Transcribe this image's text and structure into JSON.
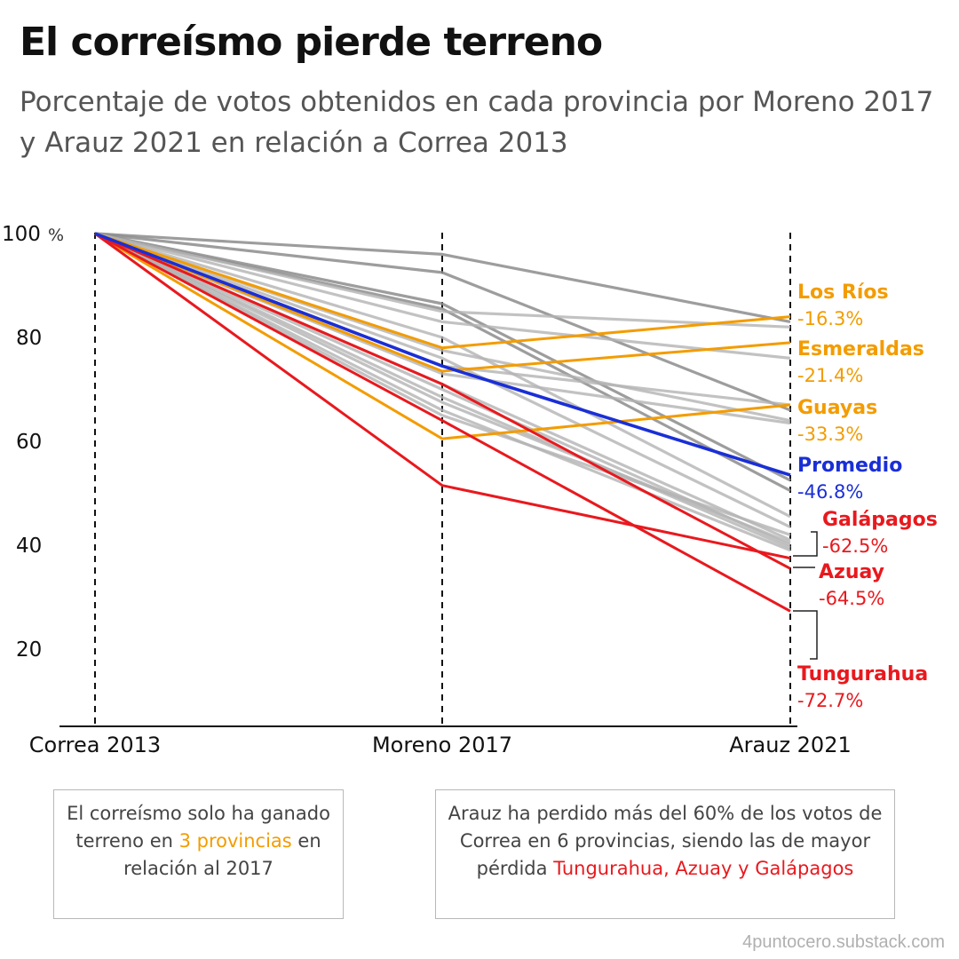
{
  "header": {
    "title": "El correísmo pierde terreno",
    "subtitle": "Porcentaje de votos obtenidos en cada provincia por Moreno 2017 y Arauz 2021 en relación a Correa 2013"
  },
  "colors": {
    "orange": "#f39c00",
    "red": "#e8191e",
    "blue": "#1a2fd6",
    "gray": "#b3b3b3",
    "dark_gray": "#8c8c8c"
  },
  "chart_data": {
    "type": "line",
    "categories": [
      "Correa 2013",
      "Moreno 2017",
      "Arauz 2021"
    ],
    "y_tick_labels": [
      "100",
      "80",
      "60",
      "40",
      "20"
    ],
    "y_unit": "%",
    "ylim": [
      5,
      100
    ],
    "grid": false,
    "highlighted_series": [
      {
        "name": "Los Ríos",
        "change_label": "-16.3%",
        "color": "#f39c00",
        "values": [
          100,
          78,
          84
        ]
      },
      {
        "name": "Esmeraldas",
        "change_label": "-21.4%",
        "color": "#f39c00",
        "values": [
          100,
          73.5,
          79
        ]
      },
      {
        "name": "Guayas",
        "change_label": "-33.3%",
        "color": "#f39c00",
        "values": [
          100,
          60.5,
          67
        ]
      },
      {
        "name": "Promedio",
        "change_label": "-46.8%",
        "color": "#1a2fd6",
        "values": [
          100,
          74.5,
          53.5
        ]
      },
      {
        "name": "Galápagos",
        "change_label": "-62.5%",
        "color": "#e8191e",
        "values": [
          100,
          51.5,
          37.5
        ]
      },
      {
        "name": "Azuay",
        "change_label": "-64.5%",
        "color": "#e8191e",
        "values": [
          100,
          71,
          35.5
        ]
      },
      {
        "name": "Tungurahua",
        "change_label": "-72.7%",
        "color": "#e8191e",
        "values": [
          100,
          64,
          27.3
        ]
      }
    ],
    "other_series": [
      {
        "values": [
          100,
          96,
          83
        ]
      },
      {
        "values": [
          100,
          92.5,
          66
        ]
      },
      {
        "values": [
          100,
          86.5,
          52.5
        ]
      },
      {
        "values": [
          100,
          85.5,
          50.5
        ]
      },
      {
        "values": [
          100,
          85,
          82
        ]
      },
      {
        "values": [
          100,
          83,
          76
        ]
      },
      {
        "values": [
          100,
          80,
          45.5
        ]
      },
      {
        "values": [
          100,
          77.5,
          64
        ]
      },
      {
        "values": [
          100,
          76,
          43.5
        ]
      },
      {
        "values": [
          100,
          74.5,
          67
        ]
      },
      {
        "values": [
          100,
          73,
          63.5
        ]
      },
      {
        "values": [
          100,
          71,
          41
        ]
      },
      {
        "values": [
          100,
          70,
          40
        ]
      },
      {
        "values": [
          100,
          68.5,
          39.5
        ]
      },
      {
        "values": [
          100,
          67.5,
          40.5
        ]
      },
      {
        "values": [
          100,
          66,
          39
        ]
      },
      {
        "values": [
          100,
          65,
          42
        ]
      }
    ]
  },
  "notes": {
    "left": {
      "part1": "El correísmo solo ha ganado terreno en ",
      "highlight": "3 provincias",
      "part2": " en relación al 2017"
    },
    "right": {
      "part1": "Arauz ha perdido más del 60% de los votos de Correa en 6 provincias, siendo las de mayor pérdida ",
      "highlight": "Tungurahua, Azuay y Galápagos"
    }
  },
  "credit": "4puntocero.substack.com"
}
